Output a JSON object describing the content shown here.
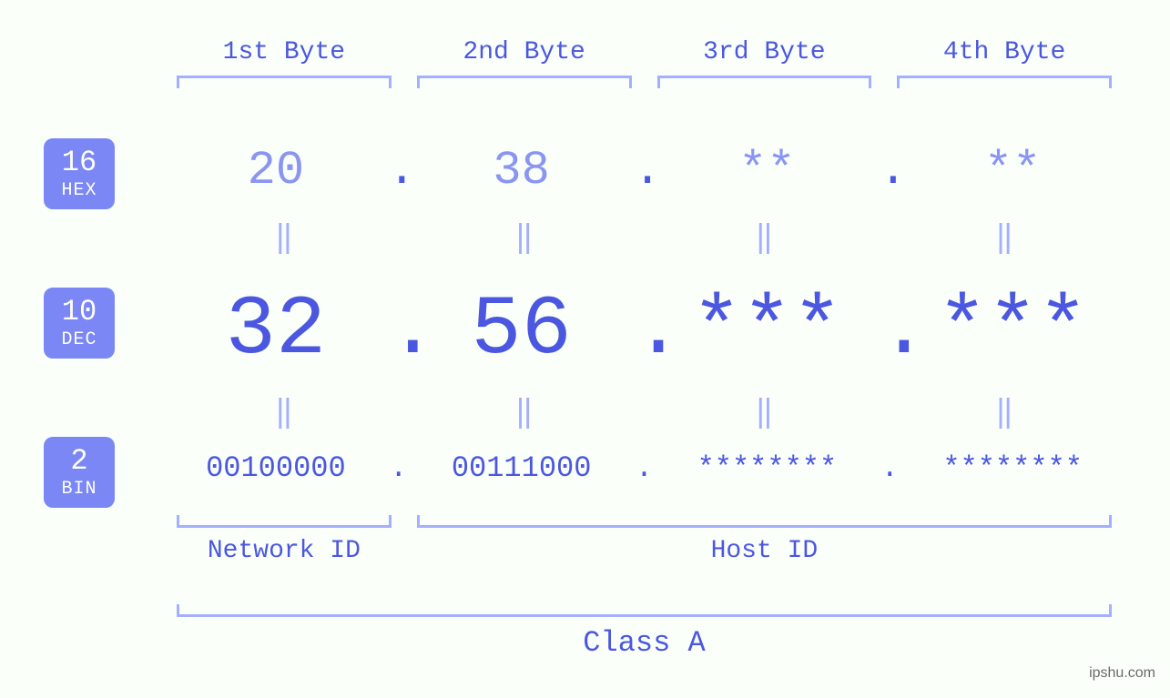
{
  "colors": {
    "background": "#fafffa",
    "primary_text": "#4b57e0",
    "light_text": "#a4afff",
    "badge_bg": "#7a87f5",
    "badge_text": "#ffffff",
    "bracket_light": "#a4afff",
    "watermark": "#8a8a8a"
  },
  "byte_headers": [
    "1st Byte",
    "2nd Byte",
    "3rd Byte",
    "4th Byte"
  ],
  "bases": {
    "hex": {
      "num": "16",
      "label": "HEX"
    },
    "dec": {
      "num": "10",
      "label": "DEC"
    },
    "bin": {
      "num": "2",
      "label": "BIN"
    }
  },
  "rows": {
    "hex": {
      "values": [
        "20",
        "38",
        "**",
        "**"
      ],
      "sep": "."
    },
    "dec": {
      "values": [
        "32",
        "56",
        "***",
        "***"
      ],
      "sep": "."
    },
    "bin": {
      "values": [
        "00100000",
        "00111000",
        "********",
        "********"
      ],
      "sep": "."
    }
  },
  "equals_glyph": "‖",
  "id_segments": {
    "network": {
      "label": "Network ID",
      "span_bytes": 1
    },
    "host": {
      "label": "Host ID",
      "span_bytes": 3
    }
  },
  "class_label": "Class A",
  "watermark": "ipshu.com",
  "font_sizes": {
    "byte_header": 28,
    "hex_row": 52,
    "dec_row": 92,
    "bin_row": 32,
    "equals": 34,
    "segment_label": 28,
    "class_label": 32,
    "badge_num": 32,
    "badge_txt": 20
  }
}
